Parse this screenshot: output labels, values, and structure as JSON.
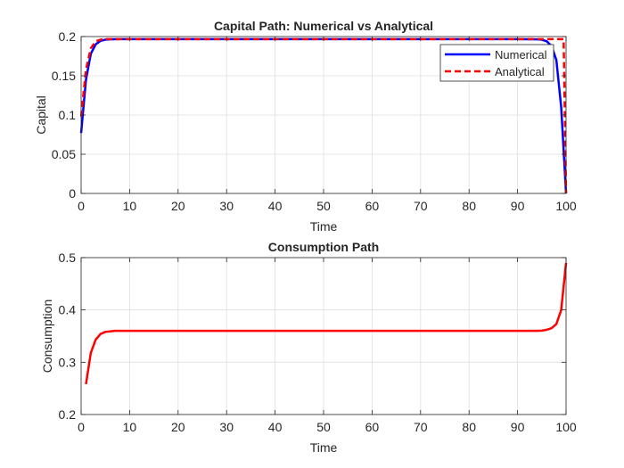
{
  "chart_data": [
    {
      "type": "line",
      "title": "Capital Path: Numerical vs Analytical",
      "xlabel": "Time",
      "ylabel": "Capital",
      "xlim": [
        0,
        100
      ],
      "ylim": [
        0,
        0.2
      ],
      "xticks": [
        0,
        10,
        20,
        30,
        40,
        50,
        60,
        70,
        80,
        90,
        100
      ],
      "yticks": [
        0,
        0.05,
        0.1,
        0.15,
        0.2
      ],
      "xtick_labels": [
        "0",
        "10",
        "20",
        "30",
        "40",
        "50",
        "60",
        "70",
        "80",
        "90",
        "100"
      ],
      "ytick_labels": [
        "0",
        "0.05",
        "0.1",
        "0.15",
        "0.2"
      ],
      "grid": true,
      "legend_position": "top-right",
      "series": [
        {
          "name": "Numerical",
          "color": "#0000ff",
          "style": "solid",
          "x": [
            0,
            1,
            2,
            3,
            4,
            5,
            6,
            8,
            10,
            20,
            30,
            40,
            50,
            60,
            70,
            80,
            90,
            94,
            95,
            96,
            97,
            98,
            99,
            100
          ],
          "y": [
            0.077,
            0.145,
            0.178,
            0.19,
            0.1945,
            0.196,
            0.1965,
            0.1967,
            0.1967,
            0.1967,
            0.1967,
            0.1967,
            0.1967,
            0.1967,
            0.1967,
            0.1967,
            0.1967,
            0.1965,
            0.196,
            0.194,
            0.188,
            0.17,
            0.11,
            0.0
          ]
        },
        {
          "name": "Analytical",
          "color": "#ff0000",
          "style": "dashed",
          "x": [
            0,
            1,
            2,
            3,
            4,
            5,
            6,
            8,
            10,
            20,
            30,
            40,
            50,
            60,
            70,
            80,
            90,
            99,
            99.5,
            100
          ],
          "y": [
            0.098,
            0.158,
            0.185,
            0.194,
            0.196,
            0.1967,
            0.1967,
            0.1967,
            0.1967,
            0.1967,
            0.1967,
            0.1967,
            0.1967,
            0.1967,
            0.1967,
            0.1967,
            0.1967,
            0.1967,
            0.1967,
            0.0
          ]
        }
      ]
    },
    {
      "type": "line",
      "title": "Consumption Path",
      "xlabel": "Time",
      "ylabel": "Consumption",
      "xlim": [
        0,
        100
      ],
      "ylim": [
        0.2,
        0.5
      ],
      "xticks": [
        0,
        10,
        20,
        30,
        40,
        50,
        60,
        70,
        80,
        90,
        100
      ],
      "yticks": [
        0.2,
        0.3,
        0.4,
        0.5
      ],
      "xtick_labels": [
        "0",
        "10",
        "20",
        "30",
        "40",
        "50",
        "60",
        "70",
        "80",
        "90",
        "100"
      ],
      "ytick_labels": [
        "0.2",
        "0.3",
        "0.4",
        "0.5"
      ],
      "grid": true,
      "series": [
        {
          "color": "#ff0000",
          "style": "solid",
          "x": [
            1,
            2,
            3,
            4,
            5,
            6,
            7,
            8,
            10,
            20,
            30,
            40,
            50,
            60,
            70,
            80,
            90,
            94,
            95,
            96,
            97,
            98,
            99,
            100
          ],
          "y": [
            0.258,
            0.318,
            0.343,
            0.354,
            0.358,
            0.359,
            0.36,
            0.36,
            0.36,
            0.36,
            0.36,
            0.36,
            0.36,
            0.36,
            0.36,
            0.36,
            0.36,
            0.36,
            0.3605,
            0.362,
            0.365,
            0.373,
            0.4,
            0.49
          ]
        }
      ]
    }
  ]
}
